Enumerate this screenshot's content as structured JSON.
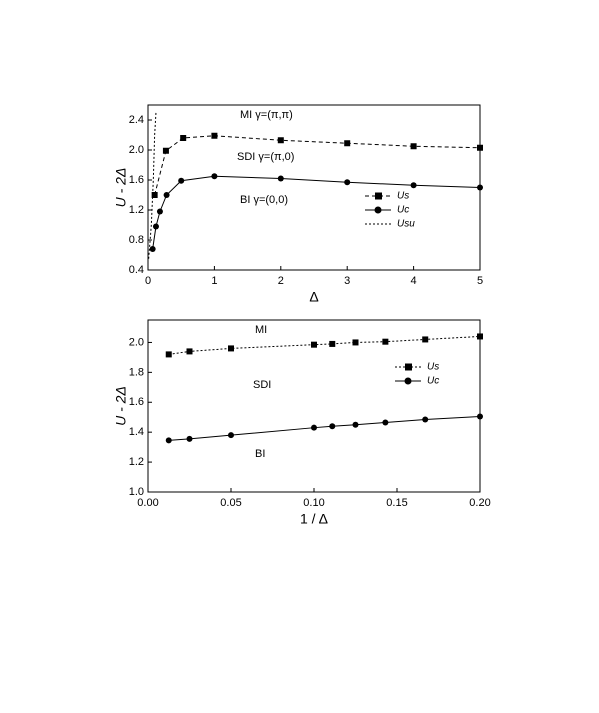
{
  "chart_data": [
    {
      "type": "line",
      "xlabel": "Δ",
      "ylabel": "U - 2Δ",
      "annotations": [
        "MI  γ=(π,π)",
        "SDI  γ=(π,0)",
        "BI  γ=(0,0)"
      ],
      "xlim": [
        0,
        5
      ],
      "ylim": [
        0.4,
        2.6
      ],
      "xticks": [
        0,
        1,
        2,
        3,
        4,
        5
      ],
      "yticks": [
        0.4,
        0.8,
        1.2,
        1.6,
        {
          "value": 2.0,
          "label": "2.0"
        },
        2.4
      ],
      "series": [
        {
          "name": "Us",
          "color": "#000000",
          "marker": "square",
          "dash": "4,3",
          "x": [
            0.1,
            0.27,
            0.53,
            1,
            2,
            3,
            4,
            5
          ],
          "values": [
            1.4,
            1.99,
            2.16,
            2.19,
            2.13,
            2.09,
            2.05,
            2.03
          ]
        },
        {
          "name": "Uc",
          "color": "#000000",
          "marker": "circle",
          "dash": "none",
          "x": [
            0.07,
            0.12,
            0.18,
            0.28,
            0.5,
            1,
            2,
            3,
            4,
            5
          ],
          "values": [
            0.68,
            0.98,
            1.18,
            1.4,
            1.59,
            1.65,
            1.62,
            1.57,
            1.53,
            1.5
          ]
        },
        {
          "name": "Usu",
          "color": "#000000",
          "marker": "none",
          "dash": "2,2",
          "x": [
            0.01,
            0.05,
            0.08,
            0.1,
            0.12
          ],
          "values": [
            0.55,
            1.0,
            1.6,
            2.2,
            2.5
          ]
        }
      ]
    },
    {
      "type": "line",
      "xlabel": "1 / Δ",
      "ylabel": "U - 2Δ",
      "annotations": [
        "MI",
        "SDI",
        "BI"
      ],
      "xlim": [
        0,
        0.2
      ],
      "ylim": [
        1.0,
        2.15
      ],
      "xticks": [
        {
          "value": 0,
          "label": "0.00"
        },
        0.05,
        {
          "value": 0.1,
          "label": "0.10"
        },
        0.15,
        {
          "value": 0.2,
          "label": "0.20"
        }
      ],
      "yticks": [
        {
          "value": 1.0,
          "label": "1.0"
        },
        1.2,
        1.4,
        1.6,
        1.8,
        {
          "value": 2.0,
          "label": "2.0"
        }
      ],
      "series": [
        {
          "name": "Us",
          "color": "#000000",
          "marker": "square",
          "dash": "2,2",
          "x": [
            0.0125,
            0.025,
            0.05,
            0.1,
            0.111,
            0.125,
            0.143,
            0.167,
            0.2
          ],
          "values": [
            1.92,
            1.94,
            1.96,
            1.985,
            1.99,
            2.0,
            2.005,
            2.02,
            2.04
          ]
        },
        {
          "name": "Uc",
          "color": "#000000",
          "marker": "circle",
          "dash": "none",
          "x": [
            0.0125,
            0.025,
            0.05,
            0.1,
            0.111,
            0.125,
            0.143,
            0.167,
            0.2
          ],
          "values": [
            1.345,
            1.355,
            1.38,
            1.43,
            1.44,
            1.45,
            1.465,
            1.485,
            1.505
          ]
        }
      ]
    }
  ]
}
